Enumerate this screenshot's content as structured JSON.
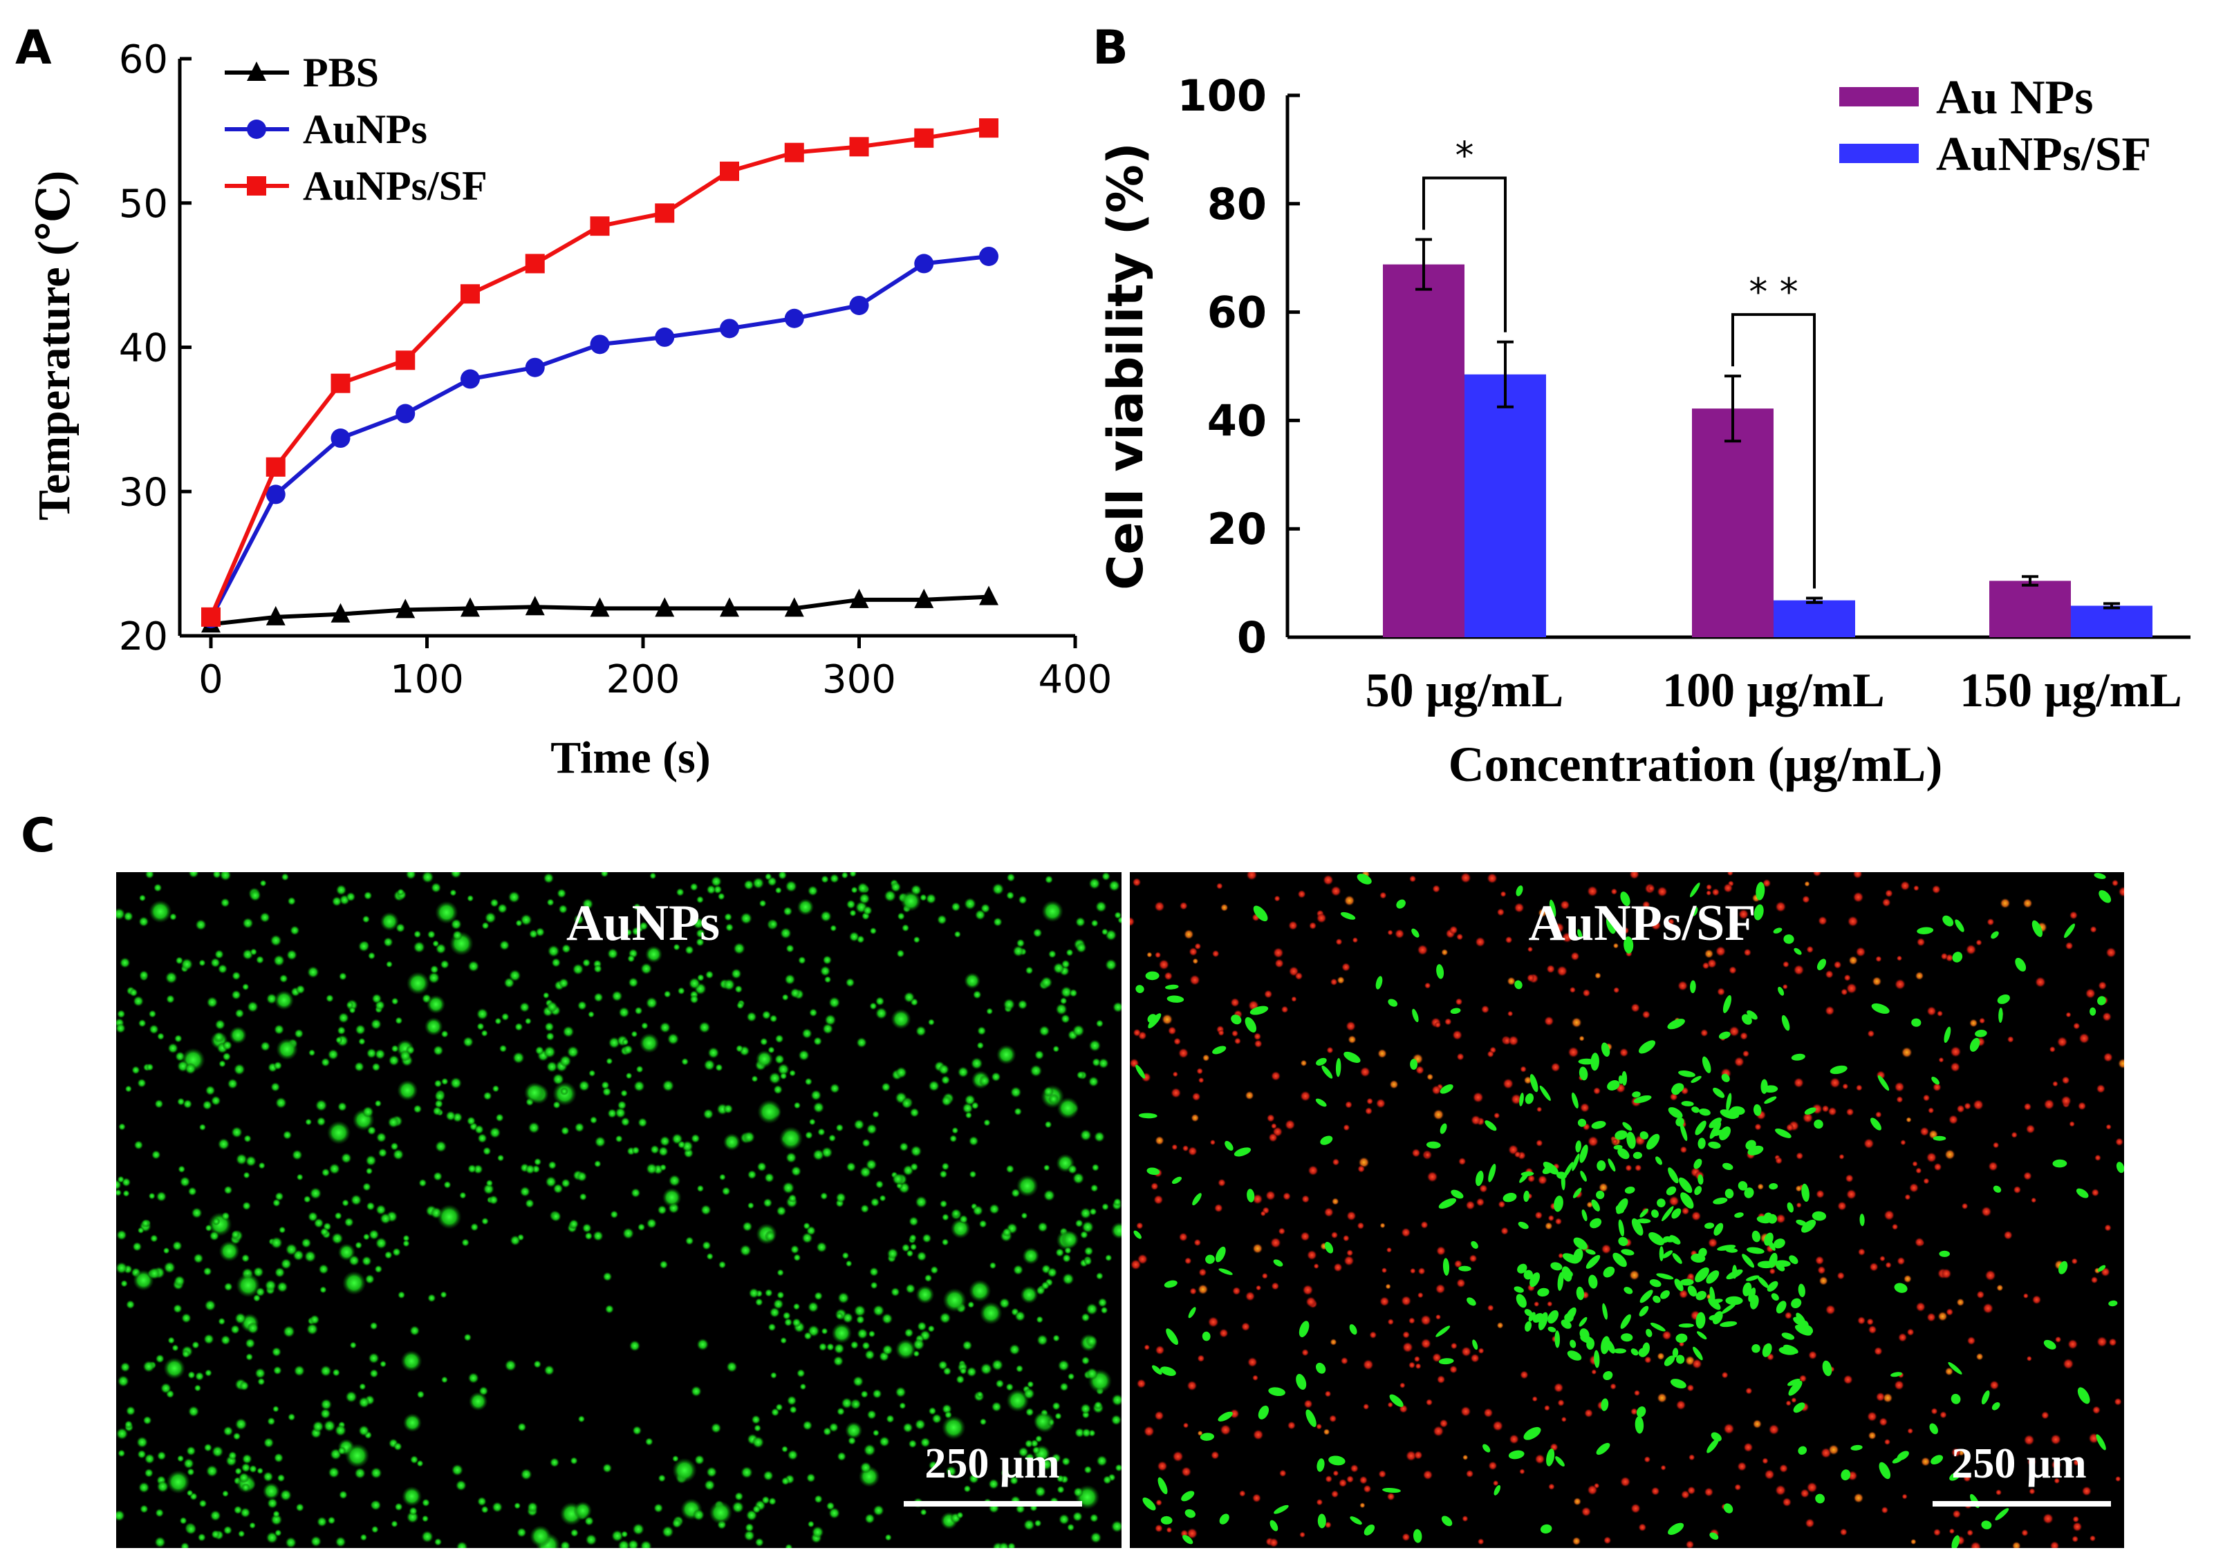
{
  "panels": {
    "a": {
      "letter": "A"
    },
    "b": {
      "letter": "B"
    },
    "c": {
      "letter": "C"
    }
  },
  "chart_data": [
    {
      "id": "panel-a",
      "type": "line",
      "title": "",
      "xlabel": "Time (s)",
      "ylabel": "Temperature (℃)",
      "xlim": [
        0,
        400
      ],
      "ylim": [
        20,
        60
      ],
      "xticks": [
        "0",
        "100",
        "200",
        "300",
        "400"
      ],
      "yticks": [
        "20",
        "30",
        "40",
        "50",
        "60"
      ],
      "legend_position": "top-left",
      "x": [
        0,
        30,
        60,
        90,
        120,
        150,
        180,
        210,
        240,
        270,
        300,
        330,
        360
      ],
      "series": [
        {
          "name": "PBS",
          "color": "#000000",
          "marker": "triangle",
          "values": [
            20.8,
            21.3,
            21.5,
            21.8,
            21.9,
            22.0,
            21.9,
            21.9,
            21.9,
            21.9,
            22.5,
            22.5,
            22.7
          ]
        },
        {
          "name": "AuNPs",
          "color": "#1a1acc",
          "marker": "circle",
          "values": [
            21.2,
            29.8,
            33.7,
            35.4,
            37.8,
            38.6,
            40.2,
            40.7,
            41.3,
            42.0,
            42.9,
            45.8,
            46.3
          ]
        },
        {
          "name": "AuNPs/SF",
          "color": "#ee1111",
          "marker": "square",
          "values": [
            21.3,
            31.7,
            37.5,
            39.1,
            43.7,
            45.8,
            48.4,
            49.3,
            52.2,
            53.5,
            53.9,
            54.5,
            55.2
          ]
        }
      ]
    },
    {
      "id": "panel-b",
      "type": "bar",
      "title": "",
      "xlabel": "Concentration (μg/mL)",
      "ylabel": "Cell viability (%)",
      "ylim": [
        0,
        100
      ],
      "yticks": [
        "0",
        "20",
        "40",
        "60",
        "80",
        "100"
      ],
      "categories": [
        "50 μg/mL",
        "100 μg/mL",
        "150 μg/mL"
      ],
      "legend_position": "top-right",
      "series": [
        {
          "name": "Au NPs",
          "color": "#8a1a8c",
          "values": [
            68.8,
            42.2,
            10.4
          ],
          "errors": [
            4.6,
            6.0,
            0.8
          ]
        },
        {
          "name": "AuNPs/SF",
          "color": "#3333ff",
          "values": [
            48.5,
            6.8,
            5.8
          ],
          "errors": [
            6.0,
            0.4,
            0.4
          ]
        }
      ],
      "significance": [
        {
          "category": "50 μg/mL",
          "label": "*"
        },
        {
          "category": "100 μg/mL",
          "label": "* *"
        }
      ]
    }
  ],
  "micrographs": [
    {
      "label": "AuNPs",
      "scale_bar": "250 μm"
    },
    {
      "label": "AuNPs/SF",
      "scale_bar": "250 μm"
    }
  ]
}
